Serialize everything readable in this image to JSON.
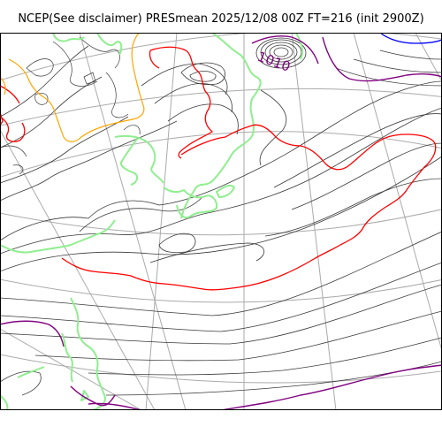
{
  "title": "NCEP(See disclaimer) PRESmean 2025/12/08 00Z FT=216 (init 2900Z)",
  "contour_label": "1010",
  "colors": {
    "isobar": "#3a3a3a",
    "grid": "#aaaaaa",
    "coastline": "#90ee90",
    "contour_1010": "#800080",
    "contour_red": "#ff0000",
    "contour_orange": "#ffa500",
    "contour_blue": "#0000ff",
    "frame": "#000000"
  }
}
